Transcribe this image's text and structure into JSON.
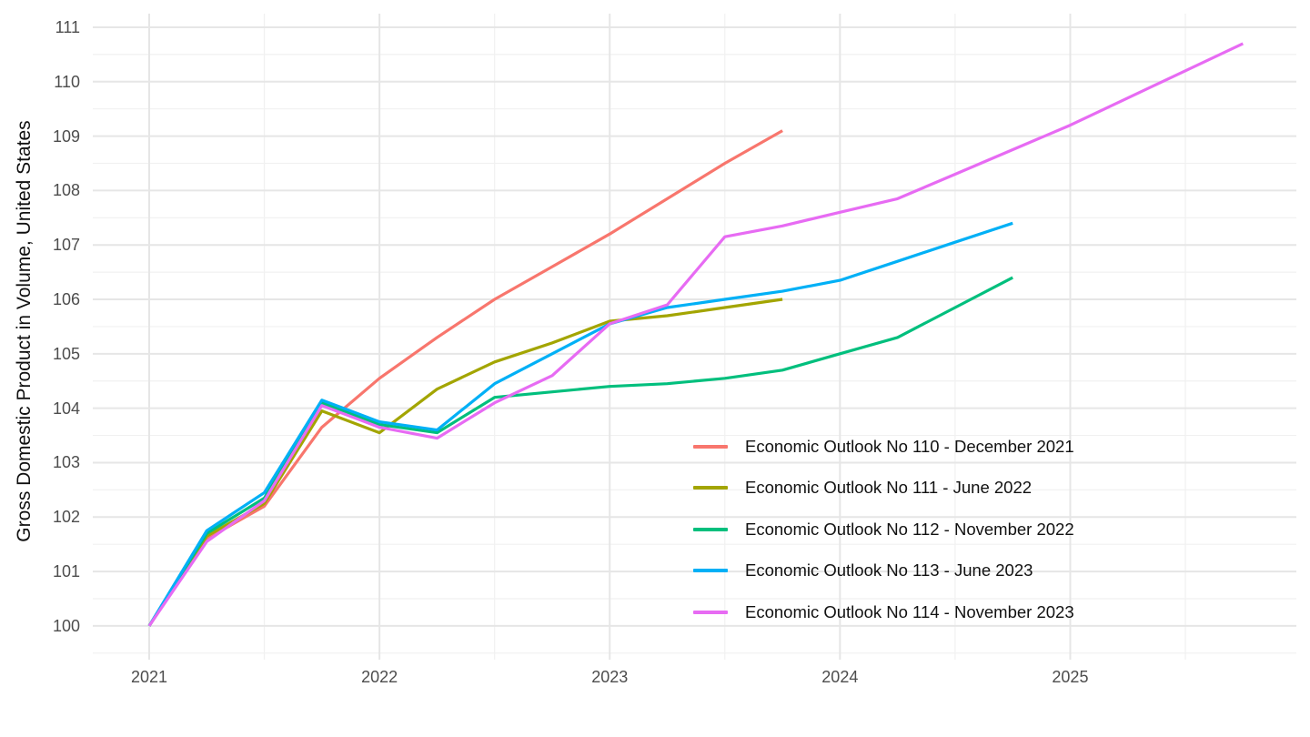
{
  "chart_data": {
    "type": "line",
    "title": "",
    "xlabel": "",
    "ylabel": "Gross Domestic Product in Volume, United States",
    "x_ticks": [
      2021,
      2022,
      2023,
      2024,
      2025
    ],
    "x_minor_ticks": [
      2021.5,
      2022.5,
      2023.5,
      2024.5,
      2025.5
    ],
    "y_ticks": [
      100,
      101,
      102,
      103,
      104,
      105,
      106,
      107,
      108,
      109,
      110,
      111
    ],
    "y_minor_ticks": [
      99.5,
      100.5,
      101.5,
      102.5,
      103.5,
      104.5,
      105.5,
      106.5,
      107.5,
      108.5,
      109.5,
      110.5
    ],
    "xlim": [
      2020.755,
      2025.982
    ],
    "ylim": [
      99.38,
      111.25
    ],
    "grid": "on",
    "legend_position": "inside-right-bottom",
    "colors": {
      "grid_major": "#e6e6e6",
      "grid_minor": "#f1f1f1",
      "axis_text": "#4d4d4d",
      "axis_title": "#111111",
      "background": "#ffffff"
    },
    "series": [
      {
        "name": "Economic Outlook No 110 - December 2021",
        "color": "#F8766D",
        "x": [
          2021.0,
          2021.25,
          2021.5,
          2021.75,
          2022.0,
          2022.25,
          2022.5,
          2022.75,
          2023.0,
          2023.25,
          2023.5,
          2023.75
        ],
        "values": [
          100.0,
          101.6,
          102.2,
          103.65,
          104.55,
          105.3,
          106.0,
          106.6,
          107.2,
          107.85,
          108.5,
          109.1
        ]
      },
      {
        "name": "Economic Outlook No 111 - June 2022",
        "color": "#A3A500",
        "x": [
          2021.0,
          2021.25,
          2021.5,
          2021.75,
          2022.0,
          2022.25,
          2022.5,
          2022.75,
          2023.0,
          2023.25,
          2023.5,
          2023.75
        ],
        "values": [
          100.0,
          101.65,
          102.25,
          103.95,
          103.55,
          104.35,
          104.85,
          105.2,
          105.6,
          105.7,
          105.85,
          106.0
        ]
      },
      {
        "name": "Economic Outlook No 112 - November 2022",
        "color": "#00BF7D",
        "x": [
          2021.0,
          2021.25,
          2021.5,
          2021.75,
          2022.0,
          2022.25,
          2022.5,
          2022.75,
          2023.0,
          2023.25,
          2023.5,
          2023.75,
          2024.0,
          2024.25,
          2024.5,
          2024.75
        ],
        "values": [
          100.0,
          101.7,
          102.35,
          104.1,
          103.7,
          103.55,
          104.2,
          104.3,
          104.4,
          104.45,
          104.55,
          104.7,
          105.0,
          105.3,
          105.85,
          106.4
        ]
      },
      {
        "name": "Economic Outlook No 113 - June 2023",
        "color": "#00B0F6",
        "x": [
          2021.0,
          2021.25,
          2021.5,
          2021.75,
          2022.0,
          2022.25,
          2022.5,
          2022.75,
          2023.0,
          2023.25,
          2023.5,
          2023.75,
          2024.0,
          2024.25,
          2024.5,
          2024.75
        ],
        "values": [
          100.0,
          101.75,
          102.45,
          104.15,
          103.75,
          103.6,
          104.45,
          105.0,
          105.55,
          105.85,
          106.0,
          106.15,
          106.35,
          106.7,
          107.05,
          107.4
        ]
      },
      {
        "name": "Economic Outlook No 114 - November 2023",
        "color": "#E76BF3",
        "x": [
          2021.0,
          2021.25,
          2021.5,
          2021.75,
          2022.0,
          2022.25,
          2022.5,
          2022.75,
          2023.0,
          2023.25,
          2023.5,
          2023.75,
          2024.0,
          2024.25,
          2024.5,
          2024.75,
          2025.0,
          2025.25,
          2025.5,
          2025.75
        ],
        "values": [
          100.0,
          101.55,
          102.3,
          104.05,
          103.65,
          103.45,
          104.1,
          104.6,
          105.55,
          105.9,
          107.15,
          107.35,
          107.6,
          107.85,
          108.3,
          108.75,
          109.2,
          109.7,
          110.2,
          110.7
        ]
      }
    ]
  }
}
